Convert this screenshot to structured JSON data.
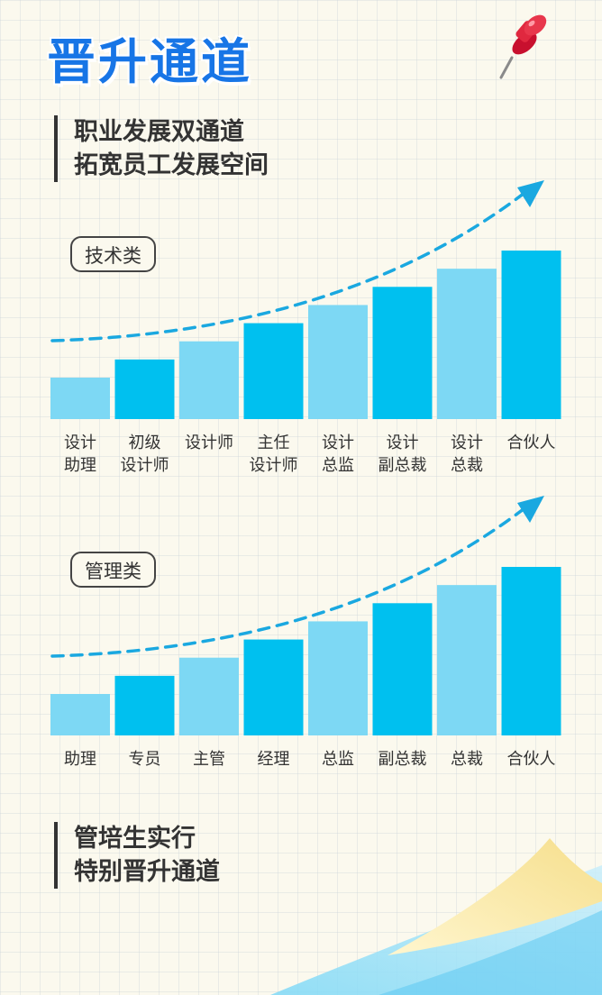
{
  "header": {
    "title": "晋升通道"
  },
  "intro": {
    "lines": [
      "职业发展双通道",
      "拓宽员工发展空间"
    ]
  },
  "footer": {
    "lines": [
      "管培生实行",
      "特别晋升通道"
    ]
  },
  "colors": {
    "bar_dark": "#00c0ef",
    "bar_light": "#7dd8f4",
    "title": "#1775e6",
    "arrow": "#1aa8e0"
  },
  "icons": {
    "pin": "pushpin-icon"
  },
  "chart_data": [
    {
      "type": "bar",
      "title": "技术类",
      "categories": [
        "设计\n助理",
        "初级\n设计师",
        "设计师",
        "主任\n设计师",
        "设计\n总监",
        "设计\n副总裁",
        "设计\n总裁",
        "合伙人"
      ],
      "values": [
        1,
        2,
        3,
        4,
        5,
        6,
        7,
        8
      ],
      "ylim": [
        0,
        8
      ],
      "trend": "increasing-dashed-arrow"
    },
    {
      "type": "bar",
      "title": "管理类",
      "categories": [
        "助理",
        "专员",
        "主管",
        "经理",
        "总监",
        "副总裁",
        "总裁",
        "合伙人"
      ],
      "values": [
        1,
        2,
        3,
        4,
        5,
        6,
        7,
        8
      ],
      "ylim": [
        0,
        8
      ],
      "trend": "increasing-dashed-arrow"
    }
  ]
}
